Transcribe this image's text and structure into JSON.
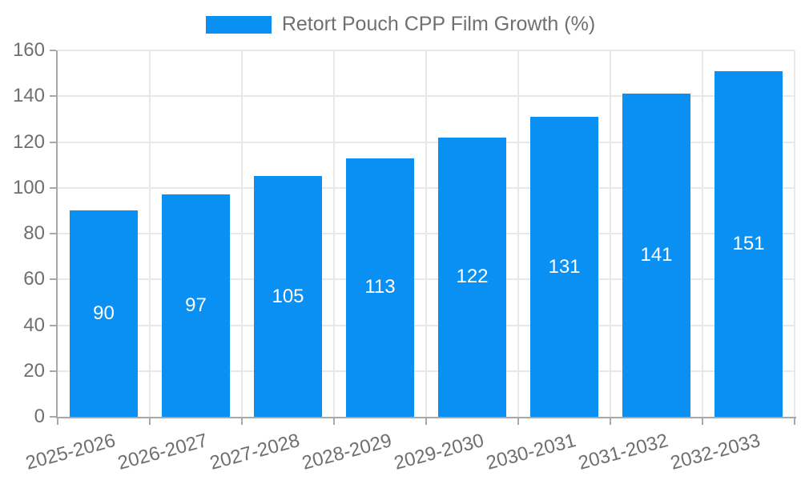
{
  "chart_data": {
    "type": "bar",
    "title": "Retort Pouch CPP Film Growth (%)",
    "categories": [
      "2025-2026",
      "2026-2027",
      "2027-2028",
      "2028-2029",
      "2029-2030",
      "2030-2031",
      "2031-2032",
      "2032-2033"
    ],
    "values": [
      90,
      97,
      105,
      113,
      122,
      131,
      141,
      151
    ],
    "xlabel": "",
    "ylabel": "",
    "ylim": [
      0,
      160
    ],
    "ytick_step": 20,
    "ytick_labels": [
      "0",
      "20",
      "40",
      "60",
      "80",
      "100",
      "120",
      "140",
      "160"
    ],
    "grid": true,
    "legend_position": "top-center",
    "colors": {
      "bar": "#0990f2",
      "value_label": "#ffffff",
      "axis": "#a8a8a8",
      "grid": "#e8e8e8",
      "tick_label": "#6f6f6f",
      "legend_text": "#707070",
      "background": "#ffffff"
    }
  }
}
